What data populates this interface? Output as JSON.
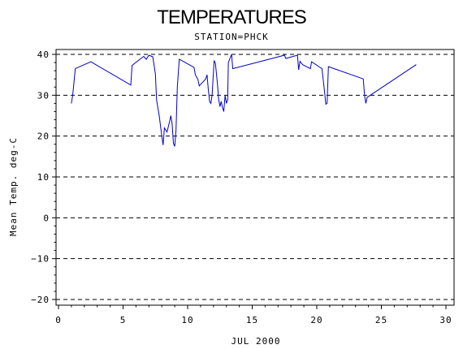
{
  "chart_data": {
    "type": "line",
    "title": "TEMPERATURES",
    "subtitle": "STATION=PHCK",
    "xlabel": "JUL 2000",
    "ylabel": "Mean Temp. deg-C",
    "xlim": [
      0,
      30
    ],
    "ylim": [
      -20,
      40
    ],
    "xticks": [
      0,
      5,
      10,
      15,
      20,
      25,
      30
    ],
    "yticks": [
      -20,
      -10,
      0,
      10,
      20,
      30,
      40
    ],
    "grid": "horizontal dashed",
    "line_color": "#0000cc",
    "series": [
      {
        "points": [
          [
            1.0,
            28
          ],
          [
            1.1,
            30
          ],
          [
            1.3,
            36.5
          ],
          [
            2.5,
            38.2
          ],
          [
            5.6,
            32.5
          ],
          [
            5.7,
            37.3
          ],
          [
            6.3,
            38.8
          ],
          [
            6.6,
            39.5
          ],
          [
            6.8,
            38.8
          ],
          [
            7.0,
            39.8
          ],
          [
            7.3,
            39.4
          ],
          [
            7.5,
            35.2
          ],
          [
            7.6,
            28.8
          ],
          [
            7.8,
            25.0
          ],
          [
            8.0,
            20.0
          ],
          [
            8.1,
            17.8
          ],
          [
            8.2,
            22.0
          ],
          [
            8.4,
            21.0
          ],
          [
            8.6,
            23.5
          ],
          [
            8.7,
            25.0
          ],
          [
            8.8,
            23.0
          ],
          [
            8.9,
            18.2
          ],
          [
            9.0,
            17.5
          ],
          [
            9.1,
            21.5
          ],
          [
            9.2,
            32.0
          ],
          [
            9.35,
            38.8
          ],
          [
            10.5,
            36.8
          ],
          [
            10.6,
            35.0
          ],
          [
            10.8,
            33.8
          ],
          [
            10.9,
            32.3
          ],
          [
            11.4,
            34.0
          ],
          [
            11.5,
            35.0
          ],
          [
            11.6,
            31.5
          ],
          [
            11.7,
            28.5
          ],
          [
            11.8,
            28.0
          ],
          [
            11.9,
            30.2
          ],
          [
            12.05,
            38.5
          ],
          [
            12.15,
            37.8
          ],
          [
            12.3,
            33.0
          ],
          [
            12.4,
            29.0
          ],
          [
            12.5,
            27.2
          ],
          [
            12.6,
            28.5
          ],
          [
            12.7,
            27.0
          ],
          [
            12.8,
            26.0
          ],
          [
            12.9,
            30.0
          ],
          [
            13.0,
            28.0
          ],
          [
            13.1,
            29.0
          ],
          [
            13.15,
            38.0
          ],
          [
            13.4,
            40.0
          ],
          [
            13.5,
            36.5
          ],
          [
            17.5,
            39.8
          ],
          [
            17.6,
            39.0
          ],
          [
            18.5,
            39.8
          ],
          [
            18.6,
            36.2
          ],
          [
            18.7,
            38.3
          ],
          [
            18.9,
            37.5
          ],
          [
            19.5,
            36.5
          ],
          [
            19.6,
            38.2
          ],
          [
            20.4,
            36.5
          ],
          [
            20.6,
            31.0
          ],
          [
            20.7,
            27.8
          ],
          [
            20.8,
            28.0
          ],
          [
            20.9,
            37.0
          ],
          [
            23.6,
            34.0
          ],
          [
            23.7,
            30.0
          ],
          [
            23.8,
            28.0
          ],
          [
            23.9,
            29.5
          ],
          [
            27.7,
            37.5
          ]
        ]
      }
    ]
  }
}
